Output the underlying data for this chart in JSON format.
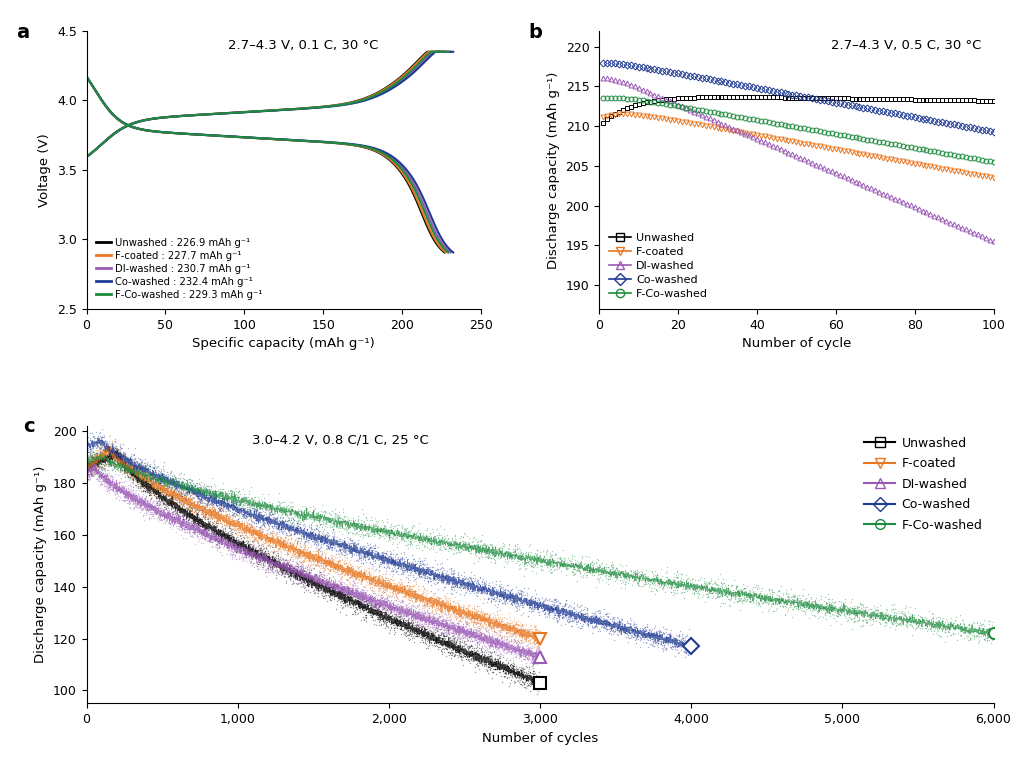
{
  "colors": {
    "unwashed": "#000000",
    "f_coated": "#E87722",
    "di_washed": "#9B59B6",
    "co_washed": "#1F3A93",
    "f_co_washed": "#1E8B3F"
  },
  "panel_a": {
    "annotation": "2.7–4.3 V, 0.1 C, 30 °C",
    "xlabel": "Specific capacity (mAh g⁻¹)",
    "ylabel": "Voltage (V)",
    "xlim": [
      0,
      250
    ],
    "ylim": [
      2.5,
      4.5
    ],
    "xticks": [
      0,
      50,
      100,
      150,
      200,
      250
    ],
    "yticks": [
      2.5,
      3.0,
      3.5,
      4.0,
      4.5
    ],
    "legend_entries": [
      "Unwashed : 226.9 mAh g⁻¹",
      "F-coated : 227.7 mAh g⁻¹",
      "DI-washed : 230.7 mAh g⁻¹",
      "Co-washed : 232.4 mAh g⁻¹",
      "F-Co-washed : 229.3 mAh g⁻¹"
    ],
    "capacities": [
      226.9,
      227.7,
      230.7,
      232.4,
      229.3
    ]
  },
  "panel_b": {
    "annotation": "2.7–4.3 V, 0.5 C, 30 °C",
    "xlabel": "Number of cycle",
    "ylabel": "Discharge capacity (mAh g⁻¹)",
    "xlim": [
      0,
      100
    ],
    "ylim": [
      187,
      222
    ],
    "xticks": [
      0,
      20,
      40,
      60,
      80,
      100
    ],
    "yticks": [
      190,
      195,
      200,
      205,
      210,
      215,
      220
    ],
    "legend_entries": [
      "Unwashed",
      "F-coated",
      "DI-washed",
      "Co-washed",
      "F-Co-washed"
    ]
  },
  "panel_c": {
    "annotation": "3.0–4.2 V, 0.8 C/1 C, 25 °C",
    "xlabel": "Number of cycles",
    "ylabel": "Discharge capacity (mAh g⁻¹)",
    "xlim": [
      0,
      6000
    ],
    "ylim": [
      95,
      202
    ],
    "xticks": [
      0,
      1000,
      2000,
      3000,
      4000,
      5000,
      6000
    ],
    "yticks": [
      100,
      120,
      140,
      160,
      180,
      200
    ],
    "legend_entries": [
      "Unwashed",
      "F-coated",
      "DI-washed",
      "Co-washed",
      "F-Co-washed"
    ],
    "series": {
      "unwashed": {
        "x_end": 3000,
        "y_start": 186,
        "y_peak": 191,
        "x_peak": 200,
        "y_end": 103
      },
      "f_coated": {
        "x_end": 3000,
        "y_start": 186,
        "y_peak": 193,
        "x_peak": 150,
        "y_end": 120
      },
      "di_washed": {
        "x_end": 3000,
        "y_start": 184,
        "y_peak": 186,
        "x_peak": 50,
        "y_end": 113
      },
      "co_washed": {
        "x_end": 4000,
        "y_start": 194,
        "y_peak": 196,
        "x_peak": 100,
        "y_end": 117
      },
      "f_co_washed": {
        "x_end": 6000,
        "y_start": 188,
        "y_peak": 190,
        "x_peak": 100,
        "y_end": 122
      }
    }
  }
}
